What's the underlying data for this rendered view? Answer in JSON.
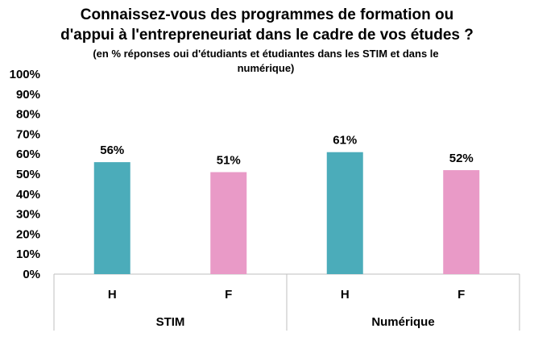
{
  "chart_data": {
    "type": "bar",
    "title_line1": "Connaissez-vous des programmes de formation ou",
    "title_line2": "d'appui à l'entrepreneuriat dans le cadre de vos études ?",
    "subtitle": "(en % réponses oui d'étudiants et étudiantes dans les STIM et dans le numérique)",
    "groups": [
      {
        "label": "STIM",
        "categories": [
          "H",
          "F"
        ],
        "values": [
          56,
          51
        ]
      },
      {
        "label": "Numérique",
        "categories": [
          "H",
          "F"
        ],
        "values": [
          61,
          52
        ]
      }
    ],
    "value_suffix": "%",
    "ylim": [
      0,
      100
    ],
    "ytick_step": 10,
    "ytick_labels": [
      "0%",
      "10%",
      "20%",
      "30%",
      "40%",
      "50%",
      "60%",
      "70%",
      "80%",
      "90%",
      "100%"
    ],
    "colors": {
      "H": "#4BACBA",
      "F": "#E99AC7"
    },
    "grid": false,
    "legend": "none"
  }
}
